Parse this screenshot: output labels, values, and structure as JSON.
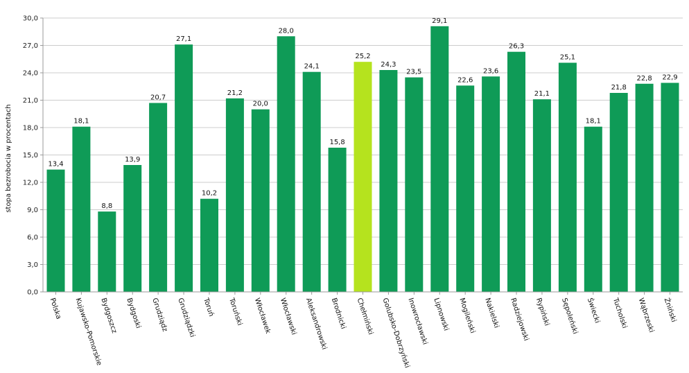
{
  "chart_data": {
    "type": "bar",
    "ylabel": "stopa bezrobocia w procentach",
    "ylim": [
      0,
      30
    ],
    "yticks": [
      "0,0",
      "3,0",
      "6,0",
      "9,0",
      "12,0",
      "15,0",
      "18,0",
      "21,0",
      "24,0",
      "27,0",
      "30,0"
    ],
    "grid": true,
    "categories": [
      "Polska",
      "Kujawsko-Pomorskie",
      "Bydgoszcz",
      "Bydgoski",
      "Grudziądz",
      "Grudziądzki",
      "Toruń",
      "Toruński",
      "Włocławek",
      "Włocławski",
      "Aleksandrowski",
      "Brodnicki",
      "Chełmiński",
      "Golubsko-Dobrzyński",
      "Inowrocławski",
      "Lipnowski",
      "Mogileński",
      "Nakielski",
      "Radziejowski",
      "Rypiński",
      "Sępoleński",
      "Świecki",
      "Tucholski",
      "Wąbrzeski",
      "Żniński"
    ],
    "values": [
      13.4,
      18.1,
      8.8,
      13.9,
      20.7,
      27.1,
      10.2,
      21.2,
      20.0,
      28.0,
      24.1,
      15.8,
      25.2,
      24.3,
      23.5,
      29.1,
      22.6,
      23.6,
      26.3,
      21.1,
      25.1,
      18.1,
      21.8,
      22.8,
      22.9
    ],
    "value_labels": [
      "13,4",
      "18,1",
      "8,8",
      "13,9",
      "20,7",
      "27,1",
      "10,2",
      "21,2",
      "20,0",
      "28,0",
      "24,1",
      "15,8",
      "25,2",
      "24,3",
      "23,5",
      "29,1",
      "22,6",
      "23,6",
      "26,3",
      "21,1",
      "25,1",
      "18,1",
      "21,8",
      "22,8",
      "22,9"
    ],
    "highlight_index": 12,
    "colors": {
      "bar": "#0f9b57",
      "highlight": "#b5e31e",
      "grid": "#cccccc",
      "axis": "#999999"
    }
  }
}
